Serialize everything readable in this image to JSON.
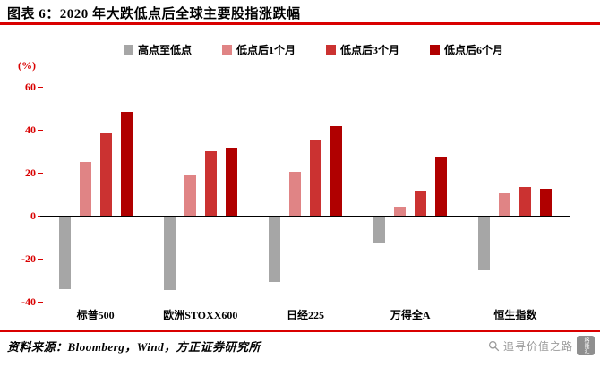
{
  "header": {
    "title": "图表 6：2020 年大跌低点后全球主要股指涨跌幅"
  },
  "footer": {
    "source": "资料来源：Bloomberg，Wind，方正证券研究所"
  },
  "watermark": {
    "text": "追寻价值之路",
    "logo_text": "格隆汇"
  },
  "colors": {
    "accent_red": "#d90000",
    "axis_line": "#000000",
    "watermark_gray": "#9a9a9a"
  },
  "chart_data": {
    "type": "bar",
    "title": "2020 年大跌低点后全球主要股指涨跌幅",
    "ylabel": "(%)",
    "xlabel": "",
    "ylim": [
      -40,
      60
    ],
    "yticks": [
      60,
      40,
      20,
      0,
      -20,
      -40
    ],
    "grid": false,
    "legend_position": "top",
    "categories": [
      "标普500",
      "欧洲STOXX600",
      "日经225",
      "万得全A",
      "恒生指数"
    ],
    "series": [
      {
        "name": "高点至低点",
        "color": "#a6a6a6",
        "values": [
          -34,
          -34.5,
          -31,
          -13,
          -25.5
        ]
      },
      {
        "name": "低点后1个月",
        "color": "#e08485",
        "values": [
          25,
          19,
          20.5,
          4,
          10.5
        ]
      },
      {
        "name": "低点后3个月",
        "color": "#cb3231",
        "values": [
          38.5,
          30,
          35.5,
          11.5,
          13.5
        ]
      },
      {
        "name": "低点后6个月",
        "color": "#b00000",
        "values": [
          48.5,
          31.5,
          41.5,
          27.5,
          12.5
        ]
      }
    ]
  }
}
